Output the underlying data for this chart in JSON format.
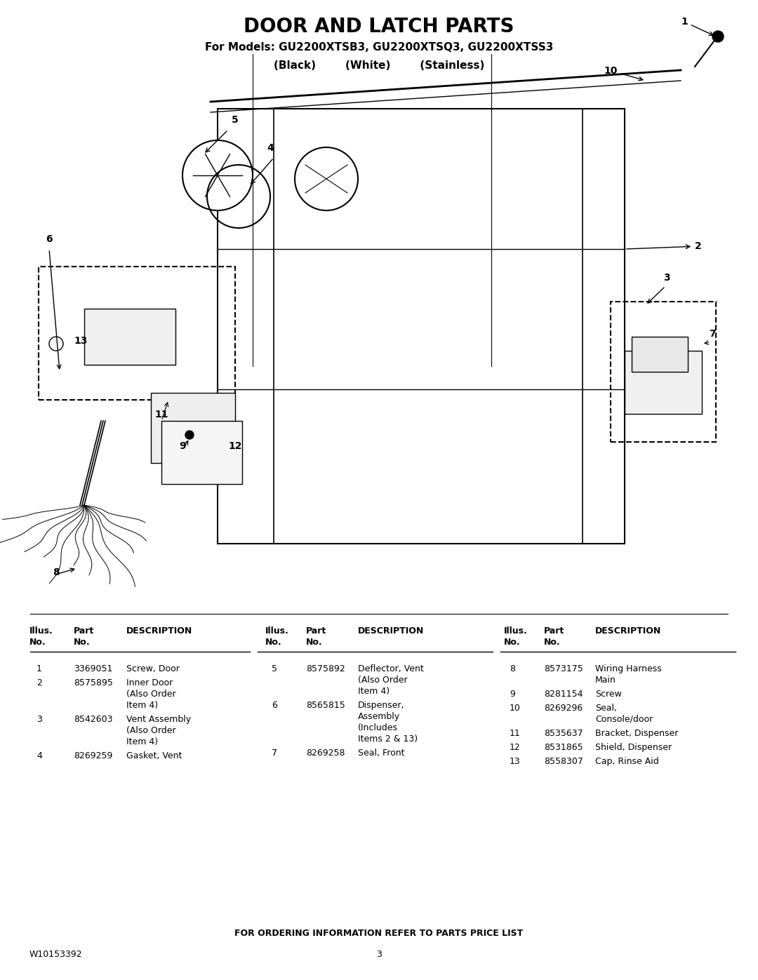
{
  "title_line1": "DOOR AND LATCH PARTS",
  "title_line2": "For Models: GU2200XTSB3, GU2200XTSQ3, GU2200XTSS3",
  "title_line3": "(Black)        (White)        (Stainless)",
  "bg_color": "#ffffff",
  "title_fontsize": 20,
  "subtitle_fontsize": 12,
  "table_header": [
    "Illus.\nNo.",
    "Part\nNo.",
    "DESCRIPTION"
  ],
  "col1_data": [
    [
      "1",
      "3369051",
      "Screw, Door"
    ],
    [
      "2",
      "8575895",
      "Inner Door\n(Also Order\nItem 4)"
    ],
    [
      "3",
      "8542603",
      "Vent Assembly\n(Also Order\nItem 4)"
    ],
    [
      "4",
      "8269259",
      "Gasket, Vent"
    ]
  ],
  "col2_data": [
    [
      "5",
      "8575892",
      "Deflector, Vent\n(Also Order\nItem 4)"
    ],
    [
      "6",
      "8565815",
      "Dispenser,\nAssembly\n(Includes\nItems 2 & 13)"
    ],
    [
      "7",
      "8269258",
      "Seal, Front"
    ]
  ],
  "col3_data": [
    [
      "8",
      "8573175",
      "Wiring Harness\nMain"
    ],
    [
      "9",
      "8281154",
      "Screw"
    ],
    [
      "10",
      "8269296",
      "Seal,\nConsole/door"
    ],
    [
      "11",
      "8535637",
      "Bracket, Dispenser"
    ],
    [
      "12",
      "8531865",
      "Shield, Dispenser"
    ],
    [
      "13",
      "8558307",
      "Cap, Rinse Aid"
    ]
  ],
  "footer_text": "FOR ORDERING INFORMATION REFER TO PARTS PRICE LIST",
  "model_num": "W10153392",
  "page_num": "3"
}
